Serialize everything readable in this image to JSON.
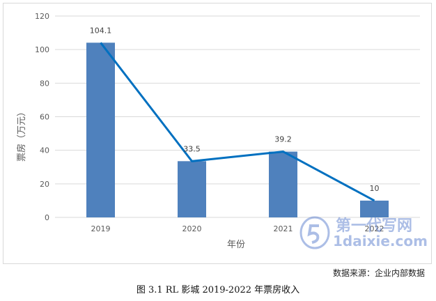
{
  "chart_data": {
    "type": "bar",
    "categories": [
      "2019",
      "2020",
      "2021",
      "2022"
    ],
    "values": [
      104.1,
      33.5,
      39.2,
      10
    ],
    "data_labels": [
      "104.1",
      "33.5",
      "39.2",
      "10"
    ],
    "overlay_line": true,
    "xlabel": "年份",
    "ylabel": "票房（万元）",
    "ylim": [
      0,
      120
    ],
    "yticks": [
      0,
      20,
      40,
      60,
      80,
      100,
      120
    ],
    "grid": true,
    "colors": {
      "bar": "#4f81bd",
      "line": "#0070c0",
      "grid": "#d9d9d9"
    }
  },
  "source_note": "数据来源：企业内部数据",
  "caption": "图 3.1 RL 影城 2019-2022 年票房收入",
  "watermark": {
    "title": "第一代写网",
    "url": "1daixie.com"
  }
}
